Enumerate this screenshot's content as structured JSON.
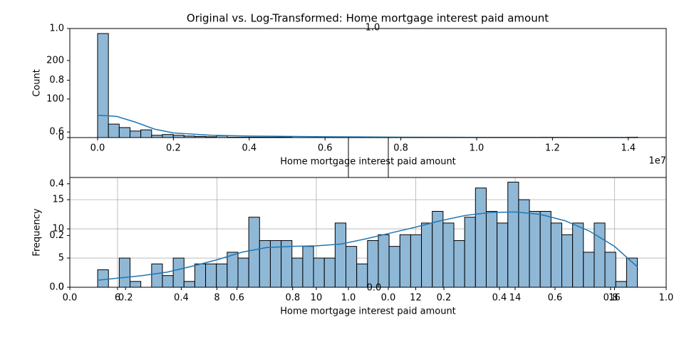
{
  "figure": {
    "title": "Original vs. Log-Transformed: Home mortgage interest paid amount"
  },
  "chart_data": [
    {
      "type": "histogram",
      "xlabel": "Home mortgage interest paid amount",
      "ylabel": "Count",
      "x_offset_label": "1e7",
      "bins": [
        0,
        0.0285,
        0.057,
        0.0855,
        0.114,
        0.1425,
        0.171,
        0.1995,
        0.228,
        0.2565,
        0.285,
        0.3135,
        0.342,
        0.3705,
        0.399,
        0.4275,
        0.456,
        0.4845,
        0.513,
        0.5415,
        0.57,
        0.5985,
        0.627,
        0.6555,
        0.684,
        0.7125,
        0.741,
        0.7695,
        0.798,
        0.8265,
        0.855,
        0.8835,
        0.912,
        0.9405,
        0.969,
        0.9975,
        1.026,
        1.0545,
        1.083,
        1.1115,
        1.14,
        1.1685,
        1.197,
        1.2255,
        1.254,
        1.2825,
        1.311,
        1.3395,
        1.368,
        1.3965,
        1.425
      ],
      "values": [
        270,
        35,
        26,
        17,
        20,
        6,
        8,
        6,
        4,
        3,
        2,
        5,
        1,
        1,
        1,
        1,
        1,
        1,
        0,
        0,
        1,
        0,
        0,
        0,
        1,
        0,
        0,
        0,
        0,
        0,
        0,
        0,
        0,
        0,
        0,
        0,
        0,
        0,
        0,
        0,
        0,
        1,
        0,
        0,
        0,
        0,
        0,
        0,
        0,
        1
      ],
      "color": "#8fb8d7",
      "kde": {
        "color": "#1f77b4",
        "x": [
          0,
          0.05,
          0.1,
          0.15,
          0.2,
          0.3,
          0.4,
          0.6,
          0.8,
          1.0,
          1.2,
          1.42
        ],
        "y": [
          58,
          55,
          40,
          22,
          12,
          6,
          4,
          2,
          1,
          0.5,
          0.5,
          0.3
        ]
      },
      "xlim": [
        -0.0733,
        1.5
      ],
      "ylim": [
        0,
        283
      ],
      "xticks": [
        {
          "value": 0,
          "label": "0.0"
        },
        {
          "value": 0.2,
          "label": "0.2"
        },
        {
          "value": 0.4,
          "label": "0.4"
        },
        {
          "value": 0.6,
          "label": "0.6"
        },
        {
          "value": 0.8,
          "label": "0.8"
        },
        {
          "value": 1,
          "label": "1.0"
        },
        {
          "value": 1.2,
          "label": "1.2"
        },
        {
          "value": 1.4,
          "label": "1.4"
        }
      ],
      "yticks": [
        0,
        100,
        200
      ],
      "grid": false
    },
    {
      "type": "histogram",
      "xlabel": "Home mortgage interest paid amount",
      "ylabel": "Frequency",
      "bins": [
        5.6,
        5.8172,
        6.0344,
        6.2516,
        6.4688,
        6.686,
        6.9032,
        7.1204,
        7.3376,
        7.5548,
        7.772,
        7.9892,
        8.2064,
        8.4236,
        8.6408,
        8.858,
        9.0752,
        9.2924,
        9.5096,
        9.7268,
        9.944,
        10.1612,
        10.3784,
        10.5956,
        10.8128,
        11.03,
        11.2472,
        11.4644,
        11.6816,
        11.8988,
        12.116,
        12.3332,
        12.5504,
        12.7676,
        12.9848,
        13.202,
        13.4192,
        13.6364,
        13.8536,
        14.0708,
        14.288,
        14.5052,
        14.7224,
        14.9396,
        15.1568,
        15.374,
        15.5912,
        15.8084,
        16.0256,
        16.2428,
        16.46
      ],
      "values": [
        3,
        0,
        5,
        1,
        0,
        4,
        2,
        5,
        1,
        4,
        4,
        4,
        6,
        5,
        12,
        8,
        8,
        8,
        5,
        7,
        5,
        5,
        11,
        7,
        4,
        8,
        9,
        7,
        9,
        9,
        11,
        13,
        11,
        8,
        12,
        17,
        13,
        11,
        18,
        15,
        13,
        13,
        11,
        9,
        11,
        6,
        11,
        6,
        1,
        5
      ],
      "color": "#8fb8d7",
      "kde": {
        "color": "#1f77b4",
        "x": [
          5.6,
          6.5,
          7,
          7.5,
          8,
          8.5,
          9,
          9.5,
          10,
          10.5,
          11,
          11.5,
          12,
          12.5,
          13,
          13.5,
          14,
          14.5,
          15,
          15.5,
          16,
          16.46
        ],
        "y": [
          1.2,
          2,
          2.6,
          3.6,
          4.7,
          6,
          6.8,
          7,
          7.1,
          7.4,
          8.3,
          9.3,
          10.3,
          11.4,
          12.3,
          12.8,
          12.9,
          12.5,
          11.4,
          9.6,
          7,
          3.5
        ]
      },
      "xlim": [
        5.04,
        17.04
      ],
      "ylim": [
        0,
        18.8
      ],
      "xticks": [
        6,
        8,
        10,
        12,
        14,
        16
      ],
      "yticks": [
        0,
        5,
        10,
        15
      ],
      "grid": true
    }
  ],
  "overlay_axes": [
    {
      "xlim": [
        0,
        1
      ],
      "ylim": [
        0,
        1
      ],
      "xticks": [
        {
          "value": 0,
          "label": "0.0"
        },
        {
          "value": 0.2,
          "label": "0.2"
        },
        {
          "value": 0.4,
          "label": "0.4"
        },
        {
          "value": 0.6,
          "label": "0.6"
        },
        {
          "value": 0.8,
          "label": "0.8"
        },
        {
          "value": 1,
          "label": "1.0"
        }
      ],
      "yticks": [
        {
          "value": 0,
          "label": "0.0"
        },
        {
          "value": 0.2,
          "label": "0.2"
        },
        {
          "value": 0.4,
          "label": "0.4"
        },
        {
          "value": 0.6,
          "label": "0.6"
        },
        {
          "value": 0.8,
          "label": "0.8"
        },
        {
          "value": 1,
          "label": "1.0"
        }
      ]
    },
    {
      "xlim": [
        0,
        1
      ],
      "xticks": [
        {
          "value": 0,
          "label": "0.0"
        },
        {
          "value": 0.2,
          "label": "0.2"
        },
        {
          "value": 0.4,
          "label": "0.4"
        },
        {
          "value": 0.6,
          "label": "0.6"
        },
        {
          "value": 0.8,
          "label": "0.8"
        },
        {
          "value": 1,
          "label": "1.0"
        }
      ]
    }
  ],
  "mid_axis_labels": [
    "1.0",
    "0.0"
  ]
}
